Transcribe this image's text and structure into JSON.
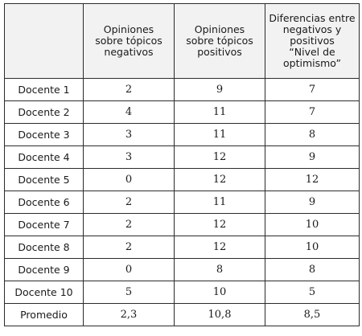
{
  "table": {
    "headers": [
      "",
      [
        "Opiniones",
        "sobre tópicos",
        "negativos"
      ],
      [
        "Opiniones",
        "sobre tópicos",
        "positivos"
      ],
      [
        "Diferencias entre",
        "negativos y",
        "positivos",
        "“Nivel de",
        "optimismo”"
      ]
    ],
    "rows": [
      [
        "Docente 1",
        "2",
        "9",
        "7"
      ],
      [
        "Docente 2",
        "4",
        "11",
        "7"
      ],
      [
        "Docente 3",
        "3",
        "11",
        "8"
      ],
      [
        "Docente 4",
        "3",
        "12",
        "9"
      ],
      [
        "Docente 5",
        "0",
        "12",
        "12"
      ],
      [
        "Docente 6",
        "2",
        "11",
        "9"
      ],
      [
        "Docente 7",
        "2",
        "12",
        "10"
      ],
      [
        "Docente 8",
        "2",
        "12",
        "10"
      ],
      [
        "Docente 9",
        "0",
        "8",
        "8"
      ],
      [
        "Docente 10",
        "5",
        "10",
        "5"
      ],
      [
        "Promedio",
        "2,3",
        "10,8",
        "8,5"
      ]
    ]
  }
}
